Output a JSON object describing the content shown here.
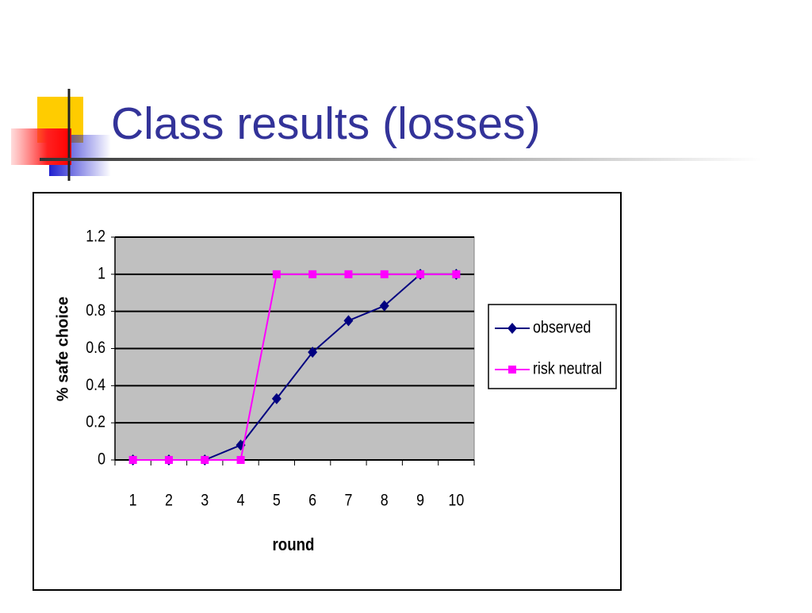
{
  "chart_data": {
    "type": "line",
    "title": "Class results (losses)",
    "x_label": "round",
    "y_label": "% safe choice",
    "categories": [
      "1",
      "2",
      "3",
      "4",
      "5",
      "6",
      "7",
      "8",
      "9",
      "10"
    ],
    "series": [
      {
        "name": "observed",
        "color": "#000080",
        "marker": "diamond",
        "values": [
          0,
          0,
          0,
          0.08,
          0.33,
          0.58,
          0.75,
          0.83,
          1,
          1
        ]
      },
      {
        "name": "risk neutral",
        "color": "#ff00ff",
        "marker": "square",
        "values": [
          0,
          0,
          0,
          0,
          1,
          1,
          1,
          1,
          1,
          1
        ]
      }
    ],
    "ylim": [
      0,
      1.2
    ],
    "yticks": [
      0,
      0.2,
      0.4,
      0.6,
      0.8,
      1,
      1.2
    ],
    "grid": true,
    "legend": "right",
    "plot_background": "#c0c0c0"
  }
}
